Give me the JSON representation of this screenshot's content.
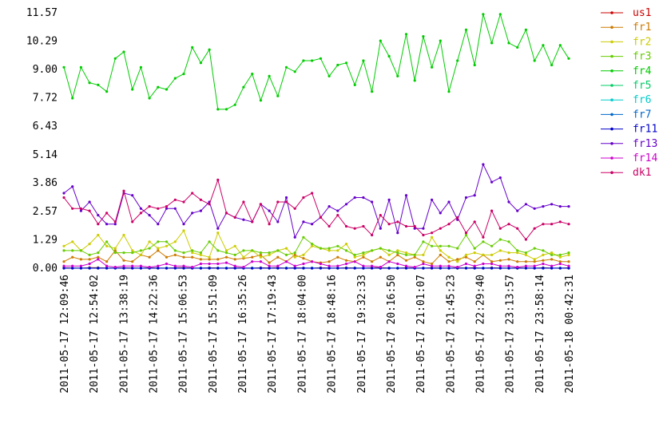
{
  "chart_data": {
    "type": "line",
    "title": "",
    "xlabel": "",
    "ylabel": "",
    "ylim": [
      0,
      11.57
    ],
    "grid": false,
    "legend_position": "right",
    "yticks": [
      "0.00",
      "1.29",
      "2.57",
      "3.86",
      "5.14",
      "6.43",
      "7.72",
      "9.00",
      "10.29",
      "11.57"
    ],
    "xticks": [
      "2011-05-17 12:09:46",
      "2011-05-17 12:54:02",
      "2011-05-17 13:38:19",
      "2011-05-17 14:22:36",
      "2011-05-17 15:06:53",
      "2011-05-17 15:51:09",
      "2011-05-17 16:35:26",
      "2011-05-17 17:19:43",
      "2011-05-17 18:04:00",
      "2011-05-17 18:48:16",
      "2011-05-17 19:32:33",
      "2011-05-17 20:16:50",
      "2011-05-17 21:01:07",
      "2011-05-17 21:45:23",
      "2011-05-17 22:29:40",
      "2011-05-17 23:13:57",
      "2011-05-17 23:58:14",
      "2011-05-18 00:42:31"
    ],
    "series": [
      {
        "name": "us1",
        "color": "#cc0000",
        "values": [
          0.02,
          0.01,
          0.0,
          0.03,
          0.02,
          0.01,
          0.0,
          0.02,
          0.01,
          0.0,
          0.02,
          0.01,
          0.0,
          0.02,
          0.03,
          0.01,
          0.0,
          0.02,
          0.01,
          0.0,
          0.02,
          0.01,
          0.0,
          0.02,
          0.01,
          0.03,
          0.0,
          0.02,
          0.01,
          0.0,
          0.02,
          0.01,
          0.0,
          0.02,
          0.01,
          0.0,
          0.02,
          0.03,
          0.01,
          0.0,
          0.02,
          0.01,
          0.0,
          0.02,
          0.01,
          0.0,
          0.02,
          0.01,
          0.03,
          0.0,
          0.02,
          0.01,
          0.0,
          0.02,
          0.01,
          0.0,
          0.02,
          0.01,
          0.0,
          0.02
        ]
      },
      {
        "name": "fr1",
        "color": "#cc7a00",
        "values": [
          0.3,
          0.5,
          0.4,
          0.4,
          0.5,
          0.3,
          0.8,
          0.35,
          0.3,
          0.6,
          0.5,
          0.8,
          0.5,
          0.6,
          0.5,
          0.5,
          0.4,
          0.4,
          0.4,
          0.5,
          0.4,
          0.45,
          0.5,
          0.6,
          0.25,
          0.5,
          0.3,
          0.6,
          0.45,
          0.3,
          0.25,
          0.3,
          0.5,
          0.35,
          0.3,
          0.5,
          0.3,
          0.5,
          0.3,
          0.6,
          0.35,
          0.5,
          0.3,
          0.2,
          0.6,
          0.3,
          0.4,
          0.5,
          0.3,
          0.6,
          0.3,
          0.35,
          0.4,
          0.3,
          0.3,
          0.3,
          0.35,
          0.4,
          0.3,
          0.3
        ]
      },
      {
        "name": "fr2",
        "color": "#cccc00",
        "values": [
          1.0,
          1.2,
          0.8,
          1.1,
          1.5,
          1.0,
          0.9,
          1.5,
          0.8,
          0.6,
          1.2,
          0.9,
          1.0,
          1.2,
          1.7,
          0.7,
          0.6,
          0.5,
          1.6,
          0.8,
          1.0,
          0.5,
          0.8,
          0.5,
          0.6,
          0.8,
          0.9,
          0.5,
          0.6,
          1.0,
          0.9,
          0.8,
          0.8,
          1.1,
          0.5,
          0.6,
          0.8,
          0.9,
          0.6,
          0.8,
          0.7,
          0.6,
          0.6,
          1.4,
          0.8,
          0.5,
          0.3,
          0.6,
          0.7,
          0.6,
          0.6,
          0.8,
          0.7,
          0.7,
          0.6,
          0.4,
          0.6,
          0.7,
          0.5,
          0.6
        ]
      },
      {
        "name": "fr3",
        "color": "#66cc00",
        "values": [
          0.8,
          0.8,
          0.8,
          0.6,
          0.7,
          1.2,
          0.7,
          0.7,
          0.7,
          0.8,
          0.9,
          1.2,
          1.2,
          0.8,
          0.7,
          0.8,
          0.7,
          1.2,
          0.8,
          0.7,
          0.6,
          0.8,
          0.8,
          0.7,
          0.7,
          0.8,
          0.6,
          0.7,
          1.4,
          1.1,
          0.9,
          0.9,
          1.0,
          0.8,
          0.6,
          0.7,
          0.8,
          0.9,
          0.8,
          0.7,
          0.6,
          0.6,
          1.2,
          1.0,
          1.0,
          1.0,
          0.9,
          1.5,
          0.9,
          1.2,
          1.0,
          1.3,
          1.2,
          0.8,
          0.7,
          0.9,
          0.8,
          0.6,
          0.6,
          0.7
        ]
      },
      {
        "name": "fr4",
        "color": "#00cc00",
        "values": [
          9.1,
          7.7,
          9.1,
          8.4,
          8.3,
          8.0,
          9.5,
          9.8,
          8.1,
          9.1,
          7.7,
          8.2,
          8.1,
          8.6,
          8.8,
          10.0,
          9.3,
          9.9,
          7.2,
          7.2,
          7.4,
          8.2,
          8.8,
          7.6,
          8.7,
          7.8,
          9.1,
          8.9,
          9.4,
          9.4,
          9.5,
          8.7,
          9.2,
          9.3,
          8.3,
          9.4,
          8.0,
          10.3,
          9.6,
          8.7,
          10.6,
          8.5,
          10.5,
          9.1,
          10.3,
          8.0,
          9.4,
          10.8,
          9.2,
          11.5,
          10.2,
          11.5,
          10.2,
          10.0,
          10.8,
          9.4,
          10.1,
          9.2,
          10.1,
          9.5
        ]
      },
      {
        "name": "fr5",
        "color": "#00cc66",
        "values": [
          0.01,
          0.0,
          0.01,
          0.0,
          0.01,
          0.0,
          0.01,
          0.0,
          0.01,
          0.0,
          0.01,
          0.0,
          0.01,
          0.0,
          0.01,
          0.0,
          0.01,
          0.0,
          0.01,
          0.0,
          0.01,
          0.0,
          0.01,
          0.0,
          0.01,
          0.0,
          0.01,
          0.0,
          0.01,
          0.0,
          0.01,
          0.0,
          0.01,
          0.0,
          0.01,
          0.0,
          0.01,
          0.0,
          0.01,
          0.0,
          0.01,
          0.0,
          0.01,
          0.0,
          0.01,
          0.0,
          0.01,
          0.0,
          0.01,
          0.0,
          0.01,
          0.0,
          0.01,
          0.0,
          0.01,
          0.0,
          0.01,
          0.0,
          0.01,
          0.0
        ]
      },
      {
        "name": "fr6",
        "color": "#00cccc",
        "values": [
          0.0,
          0.01,
          0.0,
          0.01,
          0.0,
          0.01,
          0.0,
          0.01,
          0.0,
          0.01,
          0.0,
          0.01,
          0.0,
          0.01,
          0.0,
          0.01,
          0.0,
          0.01,
          0.0,
          0.01,
          0.0,
          0.01,
          0.0,
          0.01,
          0.0,
          0.01,
          0.0,
          0.01,
          0.0,
          0.01,
          0.0,
          0.01,
          0.0,
          0.01,
          0.0,
          0.01,
          0.0,
          0.01,
          0.0,
          0.01,
          0.0,
          0.01,
          0.0,
          0.01,
          0.0,
          0.01,
          0.0,
          0.01,
          0.0,
          0.01,
          0.0,
          0.01,
          0.0,
          0.01,
          0.0,
          0.01,
          0.0,
          0.01,
          0.0,
          0.01
        ]
      },
      {
        "name": "fr7",
        "color": "#0066cc",
        "values": [
          0.0,
          0.0,
          0.0,
          0.0,
          0.0,
          0.0,
          0.0,
          0.0,
          0.0,
          0.0,
          0.0,
          0.0,
          0.0,
          0.0,
          0.0,
          0.0,
          0.0,
          0.0,
          0.0,
          0.0,
          0.0,
          0.0,
          0.0,
          0.0,
          0.0,
          0.0,
          0.0,
          0.0,
          0.0,
          0.0,
          0.0,
          0.0,
          0.0,
          0.0,
          0.0,
          0.0,
          0.0,
          0.0,
          0.0,
          0.0,
          0.0,
          0.0,
          0.0,
          0.0,
          0.0,
          0.0,
          0.0,
          0.0,
          0.0,
          0.0,
          0.0,
          0.0,
          0.0,
          0.0,
          0.0,
          0.0,
          0.0,
          0.0,
          0.0,
          0.0
        ]
      },
      {
        "name": "fr11",
        "color": "#0000cc",
        "values": [
          0.0,
          0.0,
          0.0,
          0.0,
          0.0,
          0.0,
          0.0,
          0.0,
          0.0,
          0.0,
          0.0,
          0.0,
          0.0,
          0.0,
          0.0,
          0.0,
          0.0,
          0.0,
          0.0,
          0.0,
          0.0,
          0.0,
          0.0,
          0.0,
          0.0,
          0.0,
          0.0,
          0.0,
          0.0,
          0.0,
          0.0,
          0.0,
          0.0,
          0.0,
          0.0,
          0.0,
          0.0,
          0.0,
          0.0,
          0.0,
          0.0,
          0.0,
          0.0,
          0.0,
          0.0,
          0.0,
          0.0,
          0.0,
          0.0,
          0.0,
          0.0,
          0.0,
          0.0,
          0.0,
          0.0,
          0.0,
          0.0,
          0.0,
          0.0,
          0.0
        ]
      },
      {
        "name": "fr13",
        "color": "#6600cc",
        "values": [
          3.4,
          3.7,
          2.6,
          3.0,
          2.4,
          2.0,
          2.0,
          3.4,
          3.3,
          2.7,
          2.4,
          2.0,
          2.7,
          2.7,
          2.0,
          2.5,
          2.6,
          3.0,
          1.8,
          2.5,
          2.3,
          2.2,
          2.1,
          2.9,
          2.6,
          2.1,
          3.2,
          1.4,
          2.1,
          2.0,
          2.3,
          2.8,
          2.6,
          2.9,
          3.2,
          3.2,
          3.0,
          1.8,
          3.1,
          1.6,
          3.3,
          1.8,
          1.8,
          3.1,
          2.5,
          3.0,
          2.2,
          3.2,
          3.3,
          4.7,
          3.9,
          4.1,
          3.0,
          2.6,
          2.9,
          2.7,
          2.8,
          2.9,
          2.8,
          2.8
        ]
      },
      {
        "name": "fr14",
        "color": "#cc00cc",
        "values": [
          0.1,
          0.1,
          0.1,
          0.2,
          0.4,
          0.1,
          0.05,
          0.1,
          0.1,
          0.1,
          0.05,
          0.1,
          0.2,
          0.1,
          0.1,
          0.05,
          0.2,
          0.2,
          0.2,
          0.25,
          0.1,
          0.05,
          0.3,
          0.3,
          0.1,
          0.1,
          0.3,
          0.1,
          0.2,
          0.3,
          0.2,
          0.1,
          0.1,
          0.2,
          0.3,
          0.1,
          0.1,
          0.05,
          0.3,
          0.2,
          0.1,
          0.05,
          0.2,
          0.1,
          0.1,
          0.1,
          0.05,
          0.2,
          0.1,
          0.2,
          0.2,
          0.1,
          0.1,
          0.05,
          0.1,
          0.1,
          0.2,
          0.1,
          0.2,
          0.1
        ]
      },
      {
        "name": "dk1",
        "color": "#cc0066",
        "values": [
          3.2,
          2.7,
          2.7,
          2.6,
          2.0,
          2.5,
          2.1,
          3.5,
          2.1,
          2.5,
          2.8,
          2.7,
          2.8,
          3.1,
          3.0,
          3.4,
          3.1,
          2.9,
          4.0,
          2.5,
          2.3,
          3.0,
          2.1,
          2.9,
          2.0,
          3.0,
          3.0,
          2.7,
          3.2,
          3.4,
          2.3,
          1.9,
          2.4,
          1.9,
          1.8,
          1.9,
          1.5,
          2.4,
          2.0,
          2.1,
          1.9,
          1.9,
          1.5,
          1.6,
          1.8,
          2.0,
          2.3,
          1.6,
          2.1,
          1.4,
          2.6,
          1.8,
          2.0,
          1.8,
          1.3,
          1.8,
          2.0,
          2.0,
          2.1,
          2.0
        ]
      }
    ]
  }
}
